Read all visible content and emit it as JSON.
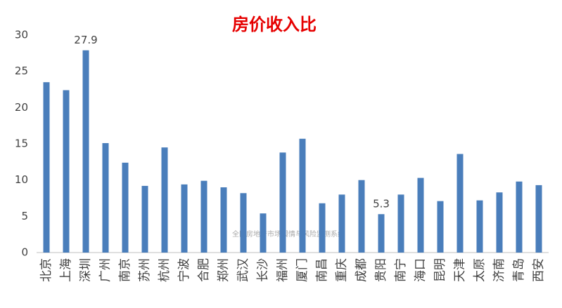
{
  "chart_data": {
    "type": "bar",
    "title": "房价收入比",
    "categories": [
      "北京",
      "上海",
      "深圳",
      "广州",
      "南京",
      "苏州",
      "杭州",
      "宁波",
      "合肥",
      "郑州",
      "武汉",
      "长沙",
      "福州",
      "厦门",
      "南昌",
      "重庆",
      "成都",
      "贵阳",
      "南宁",
      "海口",
      "昆明",
      "天津",
      "太原",
      "济南",
      "青岛",
      "西安"
    ],
    "values": [
      23.5,
      22.4,
      27.9,
      15.1,
      12.4,
      9.2,
      14.5,
      9.4,
      9.9,
      9.0,
      8.2,
      5.4,
      13.8,
      15.7,
      6.8,
      8.0,
      10.0,
      5.3,
      8.0,
      10.3,
      7.1,
      13.6,
      7.2,
      8.3,
      9.8,
      9.3
    ],
    "value_labels": [
      null,
      null,
      "27.9",
      null,
      null,
      null,
      null,
      null,
      null,
      null,
      null,
      null,
      null,
      null,
      null,
      null,
      null,
      "5.3",
      null,
      null,
      null,
      null,
      null,
      null,
      null,
      null
    ],
    "color": "#4a7ebb",
    "ylim": [
      0,
      30
    ],
    "yticks": [
      0,
      5,
      10,
      15,
      20,
      25,
      30
    ],
    "grid": false,
    "watermark": "全国房地产市场舆情与风险监测系统"
  }
}
